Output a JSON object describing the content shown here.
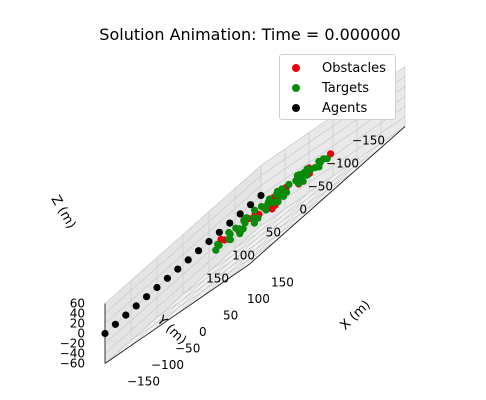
{
  "chart_data": {
    "type": "scatter",
    "title": "Solution Animation: Time = 0.000000",
    "xlabel": "X (m)",
    "ylabel": "Y (m)",
    "zlabel": "Z (m)",
    "x_ticks": [
      "−150",
      "−100",
      "−50",
      "0",
      "50",
      "100",
      "150"
    ],
    "y_ticks": [
      "−150",
      "−100",
      "−50",
      "0",
      "50",
      "100",
      "150"
    ],
    "z_ticks": [
      "60",
      "40",
      "20",
      "0",
      "−20",
      "−40",
      "−60"
    ],
    "xlim": [
      -150,
      150
    ],
    "ylim": [
      -150,
      150
    ],
    "zlim": [
      -60,
      60
    ],
    "legend_position": "top-right",
    "colors": {
      "obstacles": "#e8000b",
      "targets": "#0a8a0a",
      "agents": "#000000"
    },
    "series": [
      {
        "name": "Obstacles",
        "points": [
          [
            0,
            -60,
            0
          ],
          [
            -10,
            -45,
            0
          ],
          [
            20,
            -70,
            0
          ],
          [
            10,
            -95,
            0
          ],
          [
            40,
            -60,
            0
          ],
          [
            -25,
            -10,
            0
          ],
          [
            60,
            -90,
            0
          ],
          [
            -50,
            -25,
            0
          ],
          [
            25,
            -15,
            0
          ],
          [
            -5,
            -5,
            0
          ],
          [
            70,
            -40,
            0
          ],
          [
            -20,
            40,
            0
          ],
          [
            45,
            40,
            0
          ],
          [
            10,
            15,
            0
          ],
          [
            80,
            -10,
            0
          ],
          [
            30,
            20,
            0
          ],
          [
            60,
            20,
            0
          ],
          [
            -60,
            10,
            0
          ],
          [
            15,
            45,
            0
          ],
          [
            85,
            40,
            0
          ],
          [
            95,
            55,
            0
          ],
          [
            5,
            -30,
            0
          ]
        ]
      },
      {
        "name": "Targets",
        "points": [
          [
            -20,
            -100,
            0
          ],
          [
            -10,
            -95,
            0
          ],
          [
            0,
            -100,
            0
          ],
          [
            10,
            -85,
            0
          ],
          [
            30,
            -95,
            0
          ],
          [
            45,
            -90,
            0
          ],
          [
            -40,
            -80,
            0
          ],
          [
            -25,
            -75,
            0
          ],
          [
            -5,
            -70,
            0
          ],
          [
            15,
            -75,
            0
          ],
          [
            40,
            -70,
            0
          ],
          [
            55,
            -75,
            0
          ],
          [
            -35,
            -60,
            0
          ],
          [
            -15,
            -55,
            0
          ],
          [
            20,
            -60,
            0
          ],
          [
            35,
            -55,
            0
          ],
          [
            60,
            -60,
            0
          ],
          [
            80,
            -65,
            0
          ],
          [
            -55,
            -50,
            0
          ],
          [
            -30,
            -40,
            0
          ],
          [
            -10,
            -35,
            0
          ],
          [
            15,
            -40,
            0
          ],
          [
            25,
            -30,
            0
          ],
          [
            45,
            -40,
            0
          ],
          [
            65,
            -40,
            0
          ],
          [
            90,
            -40,
            0
          ],
          [
            -45,
            -20,
            0
          ],
          [
            5,
            -20,
            0
          ],
          [
            35,
            -15,
            0
          ],
          [
            55,
            -10,
            0
          ],
          [
            75,
            -15,
            0
          ],
          [
            -60,
            -5,
            0
          ],
          [
            -40,
            0,
            0
          ],
          [
            -10,
            10,
            0
          ],
          [
            20,
            0,
            0
          ],
          [
            45,
            5,
            0
          ],
          [
            65,
            5,
            0
          ],
          [
            95,
            -5,
            0
          ],
          [
            -30,
            20,
            0
          ],
          [
            0,
            30,
            0
          ],
          [
            25,
            25,
            0
          ],
          [
            50,
            25,
            0
          ],
          [
            75,
            25,
            0
          ],
          [
            -15,
            55,
            0
          ],
          [
            10,
            60,
            0
          ],
          [
            35,
            55,
            0
          ],
          [
            60,
            50,
            0
          ],
          [
            5,
            80,
            0
          ],
          [
            30,
            75,
            0
          ],
          [
            55,
            80,
            0
          ],
          [
            80,
            75,
            0
          ],
          [
            -40,
            35,
            0
          ],
          [
            40,
            65,
            0
          ],
          [
            -50,
            -30,
            0
          ],
          [
            70,
            10,
            0
          ]
        ]
      },
      {
        "name": "Agents",
        "points": [
          [
            -150,
            -150,
            0
          ],
          [
            -150,
            -130,
            0
          ],
          [
            -150,
            -110,
            0
          ],
          [
            -150,
            -90,
            0
          ],
          [
            -150,
            -70,
            0
          ],
          [
            -150,
            -50,
            0
          ],
          [
            -150,
            -30,
            0
          ],
          [
            -150,
            -10,
            0
          ],
          [
            -150,
            10,
            0
          ],
          [
            -150,
            30,
            0
          ],
          [
            -150,
            50,
            0
          ],
          [
            -150,
            70,
            0
          ],
          [
            -150,
            90,
            0
          ],
          [
            -150,
            110,
            0
          ],
          [
            -150,
            130,
            0
          ],
          [
            -150,
            150,
            0
          ]
        ]
      }
    ]
  }
}
